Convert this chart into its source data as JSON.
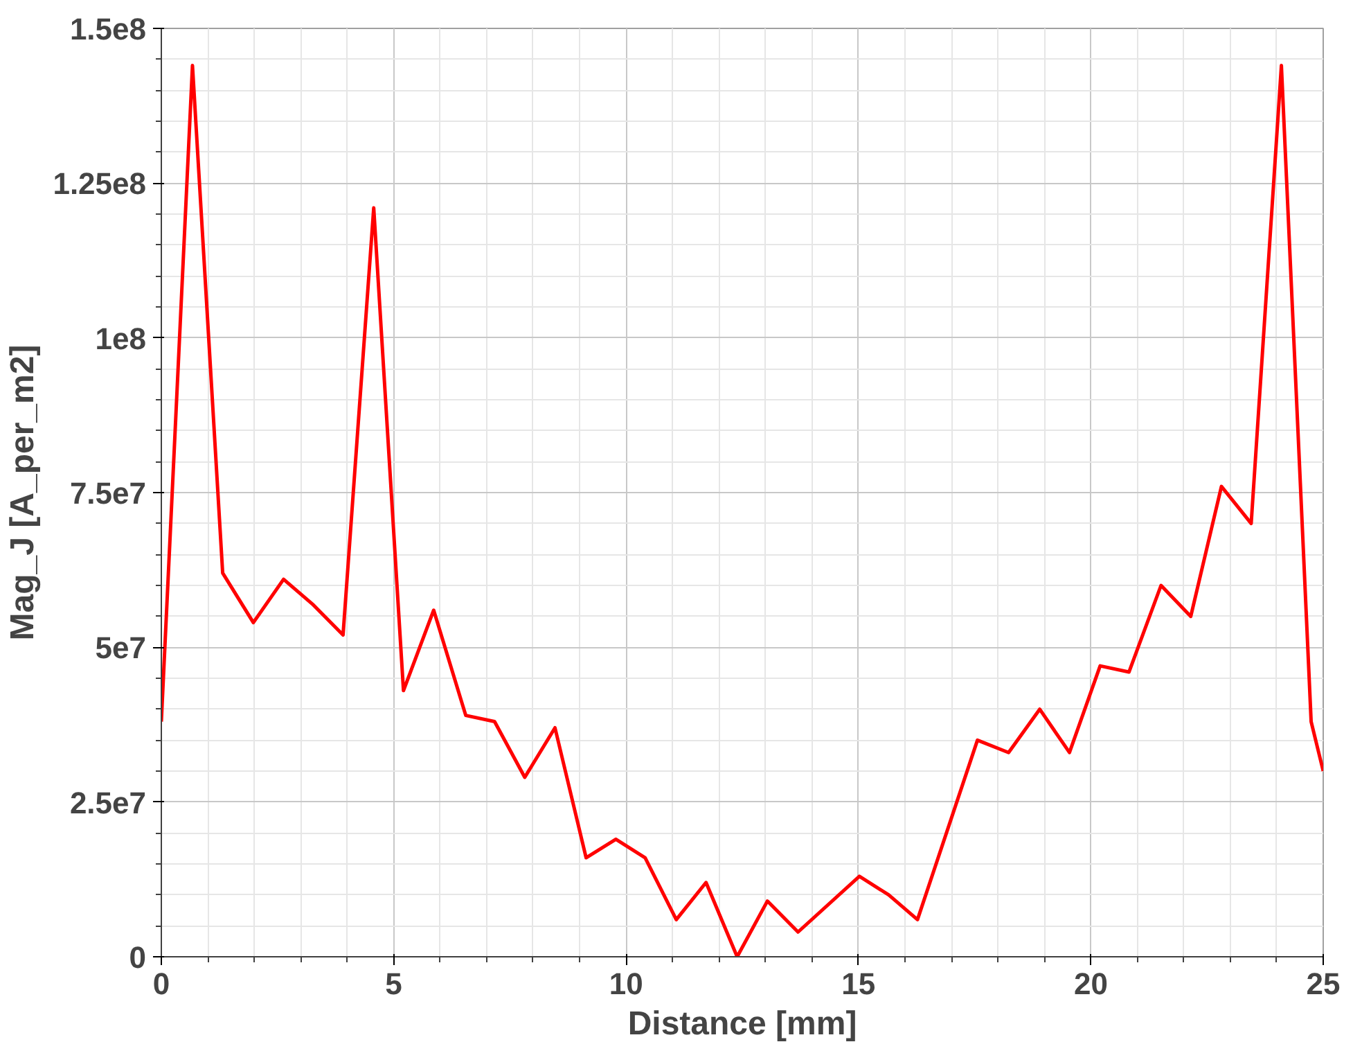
{
  "chart_data": {
    "type": "line",
    "xlabel": "Distance [mm]",
    "ylabel": "Mag_J [A_per_m2]",
    "x": [
      0,
      0.67,
      1.32,
      1.98,
      2.63,
      3.25,
      3.91,
      4.57,
      5.21,
      5.86,
      6.55,
      7.17,
      7.82,
      8.47,
      9.14,
      9.78,
      10.41,
      11.08,
      11.72,
      12.39,
      13.04,
      13.7,
      15.02,
      15.65,
      16.27,
      17.56,
      18.23,
      18.9,
      19.54,
      20.2,
      20.82,
      21.51,
      22.15,
      22.81,
      23.45,
      24.1,
      24.74,
      25
    ],
    "series": [
      {
        "color": "#ff0000",
        "values": [
          38000000,
          144000000,
          62000000,
          54000000,
          61000000,
          57000000,
          52000000,
          121000000,
          43000000,
          56000000,
          39000000,
          38000000,
          29000000,
          37000000,
          16000000,
          19000000,
          16000000,
          6000000,
          12000000,
          0,
          9000000,
          4000000,
          13000000,
          10000000,
          6000000,
          35000000,
          33000000,
          40000000,
          33000000,
          47000000,
          46000000,
          60000000,
          55000000,
          76000000,
          70000000,
          144000000,
          38000000,
          30000000
        ]
      }
    ],
    "xlim": [
      0,
      25
    ],
    "ylim": [
      0,
      150000000
    ],
    "xticks": [
      0,
      5,
      10,
      15,
      20,
      25
    ],
    "yticks": [
      {
        "value": 0,
        "label": "0"
      },
      {
        "value": 25000000,
        "label": "2.5e7"
      },
      {
        "value": 50000000,
        "label": "5e7"
      },
      {
        "value": 75000000,
        "label": "7.5e7"
      },
      {
        "value": 100000000,
        "label": "1e8"
      },
      {
        "value": 125000000,
        "label": "1.25e8"
      },
      {
        "value": 150000000,
        "label": "1.5e8"
      }
    ],
    "grid": true,
    "marker": "none",
    "line_style": "solid"
  }
}
